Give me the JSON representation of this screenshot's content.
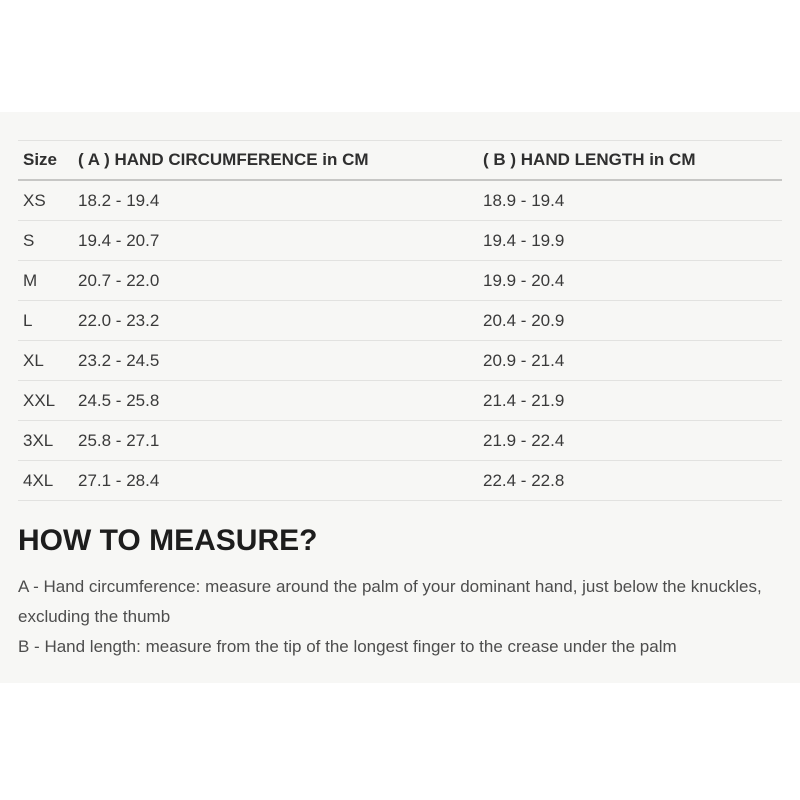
{
  "page": {
    "background_color": "#ffffff",
    "panel_background_color": "#f7f7f5",
    "divider_color": "#e2e2e0",
    "header_rule_color": "#c7c7c5"
  },
  "size_chart": {
    "columns": {
      "size": "Size",
      "circumference": "( A ) HAND CIRCUMFERENCE in CM",
      "length": "( B ) HAND LENGTH in CM"
    },
    "rows": [
      {
        "size": "XS",
        "circumference": "18.2 - 19.4",
        "length": "18.9 - 19.4"
      },
      {
        "size": "S",
        "circumference": "19.4 - 20.7",
        "length": "19.4 - 19.9"
      },
      {
        "size": "M",
        "circumference": "20.7 - 22.0",
        "length": "19.9 - 20.4"
      },
      {
        "size": "L",
        "circumference": "22.0 - 23.2",
        "length": "20.4 - 20.9"
      },
      {
        "size": "XL",
        "circumference": "23.2 - 24.5",
        "length": "20.9 - 21.4"
      },
      {
        "size": "XXL",
        "circumference": "24.5 - 25.8",
        "length": "21.4 - 21.9"
      },
      {
        "size": "3XL",
        "circumference": "25.8 - 27.1",
        "length": "21.9 - 22.4"
      },
      {
        "size": "4XL",
        "circumference": "27.1 - 28.4",
        "length": "22.4 - 22.8"
      }
    ]
  },
  "how_to_measure": {
    "title": "HOW TO MEASURE?",
    "instructions": [
      "A - Hand circumference: measure around the palm of your dominant hand, just below the knuckles, excluding the thumb",
      "B - Hand length: measure from the tip of the longest finger to the crease under the palm"
    ]
  }
}
